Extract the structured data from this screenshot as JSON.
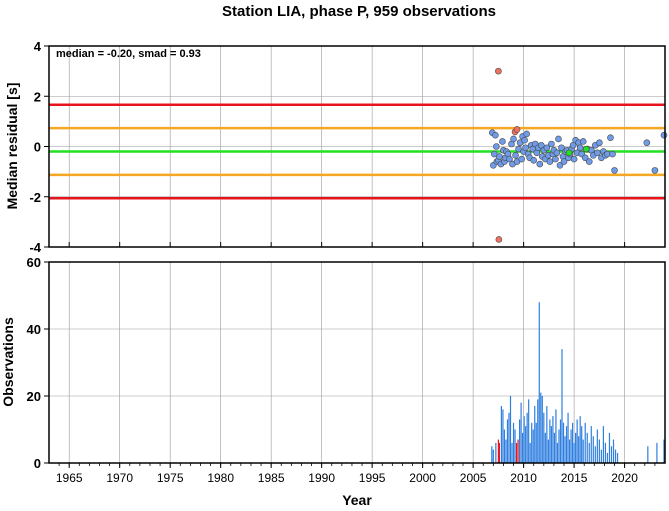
{
  "chart_data": [
    {
      "type": "scatter",
      "title": "Station LIA, phase P, 959 observations",
      "annotation": "median = -0.20, smad = 0.93",
      "ylabel": "Median residual [s]",
      "xlim": [
        1963,
        2024
      ],
      "ylim": [
        -4,
        4
      ],
      "y_ticks": [
        4,
        2,
        0,
        -2,
        -4
      ],
      "x_ticks": [
        1965,
        1970,
        1975,
        1980,
        1985,
        1990,
        1995,
        2000,
        2005,
        2010,
        2015,
        2020
      ],
      "grid": true,
      "reference_lines": [
        {
          "y": 1.66,
          "color": "#e8141c"
        },
        {
          "y": 0.73,
          "color": "#f5a623"
        },
        {
          "y": -0.2,
          "color": "#22e022"
        },
        {
          "y": -1.13,
          "color": "#f5a623"
        },
        {
          "y": -2.06,
          "color": "#e8141c"
        }
      ],
      "series": [
        {
          "color": "#6f9be8",
          "points": [
            [
              2006.9,
              0.55
            ],
            [
              2007.0,
              -0.75
            ],
            [
              2007.1,
              -0.3
            ],
            [
              2007.2,
              0.45
            ],
            [
              2007.3,
              0.0
            ],
            [
              2007.35,
              -0.6
            ],
            [
              2007.5,
              -0.55
            ],
            [
              2007.6,
              -0.4
            ],
            [
              2007.75,
              -0.7
            ],
            [
              2007.9,
              0.2
            ],
            [
              2008.0,
              -0.15
            ],
            [
              2008.1,
              -0.6
            ],
            [
              2008.2,
              -0.45
            ],
            [
              2008.3,
              -0.2
            ],
            [
              2008.45,
              -0.3
            ],
            [
              2008.6,
              -0.5
            ],
            [
              2008.8,
              0.1
            ],
            [
              2008.9,
              -0.7
            ],
            [
              2009.0,
              0.3
            ],
            [
              2009.2,
              -0.35
            ],
            [
              2009.35,
              -0.6
            ],
            [
              2009.5,
              -0.1
            ],
            [
              2009.65,
              0.15
            ],
            [
              2009.8,
              -0.5
            ],
            [
              2009.9,
              0.4
            ],
            [
              2010.0,
              -0.2
            ],
            [
              2010.1,
              0.25
            ],
            [
              2010.2,
              -0.05
            ],
            [
              2010.3,
              0.5
            ],
            [
              2010.45,
              -0.3
            ],
            [
              2010.6,
              -0.45
            ],
            [
              2010.75,
              0.05
            ],
            [
              2010.9,
              -0.1
            ],
            [
              2011.0,
              -0.55
            ],
            [
              2011.15,
              0.1
            ],
            [
              2011.3,
              -0.25
            ],
            [
              2011.45,
              -0.05
            ],
            [
              2011.6,
              -0.7
            ],
            [
              2011.75,
              0.05
            ],
            [
              2011.85,
              -0.4
            ],
            [
              2012.0,
              -0.15
            ],
            [
              2012.15,
              -0.5
            ],
            [
              2012.3,
              -0.05
            ],
            [
              2012.45,
              -0.35
            ],
            [
              2012.6,
              -0.6
            ],
            [
              2012.75,
              0.1
            ],
            [
              2012.9,
              -0.3
            ],
            [
              2013.0,
              -0.15
            ],
            [
              2013.15,
              -0.5
            ],
            [
              2013.3,
              -0.25
            ],
            [
              2013.45,
              0.3
            ],
            [
              2013.6,
              -0.75
            ],
            [
              2013.75,
              -0.05
            ],
            [
              2013.9,
              -0.4
            ],
            [
              2014.0,
              -0.6
            ],
            [
              2014.15,
              -0.2
            ],
            [
              2014.3,
              -0.15
            ],
            [
              2014.45,
              -0.45
            ],
            [
              2014.6,
              -0.3
            ],
            [
              2014.75,
              -0.1
            ],
            [
              2014.9,
              0.05
            ],
            [
              2015.0,
              -0.5
            ],
            [
              2015.15,
              0.25
            ],
            [
              2015.3,
              -0.25
            ],
            [
              2015.45,
              0.15
            ],
            [
              2015.6,
              -0.05
            ],
            [
              2015.75,
              -0.3
            ],
            [
              2015.9,
              0.2
            ],
            [
              2016.1,
              -0.45
            ],
            [
              2016.3,
              -0.1
            ],
            [
              2016.5,
              -0.6
            ],
            [
              2016.7,
              -0.15
            ],
            [
              2016.9,
              -0.35
            ],
            [
              2017.1,
              0.05
            ],
            [
              2017.3,
              -0.25
            ],
            [
              2017.5,
              0.15
            ],
            [
              2017.7,
              -0.45
            ],
            [
              2017.9,
              -0.2
            ],
            [
              2018.1,
              -0.35
            ],
            [
              2018.3,
              -0.3
            ],
            [
              2018.6,
              0.35
            ],
            [
              2018.8,
              -0.3
            ],
            [
              2019.0,
              -0.95
            ],
            [
              2022.2,
              0.15
            ],
            [
              2023.0,
              -0.95
            ],
            [
              2023.9,
              0.45
            ]
          ]
        },
        {
          "color": "#22e022",
          "points": [
            [
              2014.5,
              -0.25
            ],
            [
              2016.2,
              -0.1
            ]
          ]
        },
        {
          "color": "#f07060",
          "points": [
            [
              2007.5,
              3.0
            ],
            [
              2007.55,
              -3.7
            ],
            [
              2009.15,
              0.58
            ],
            [
              2009.35,
              0.68
            ]
          ]
        }
      ]
    },
    {
      "type": "bar",
      "xlabel": "Year",
      "ylabel": "Observations",
      "xlim": [
        1963,
        2024
      ],
      "ylim": [
        0,
        60
      ],
      "y_ticks": [
        0,
        20,
        40,
        60
      ],
      "x_ticks": [
        1965,
        1970,
        1975,
        1980,
        1985,
        1990,
        1995,
        2000,
        2005,
        2010,
        2015,
        2020
      ],
      "grid": true,
      "series": [
        {
          "color": "#2f7fe0",
          "points": [
            [
              2006.85,
              5
            ],
            [
              2007.0,
              4
            ],
            [
              2007.25,
              6
            ],
            [
              2007.8,
              17
            ],
            [
              2007.95,
              16
            ],
            [
              2008.1,
              10
            ],
            [
              2008.25,
              7
            ],
            [
              2008.4,
              13
            ],
            [
              2008.55,
              15
            ],
            [
              2008.7,
              20
            ],
            [
              2008.85,
              6
            ],
            [
              2009.0,
              12
            ],
            [
              2009.15,
              10
            ],
            [
              2009.6,
              13
            ],
            [
              2009.75,
              18
            ],
            [
              2009.9,
              9
            ],
            [
              2010.05,
              14
            ],
            [
              2010.2,
              11
            ],
            [
              2010.35,
              15
            ],
            [
              2010.5,
              19
            ],
            [
              2010.65,
              6
            ],
            [
              2010.8,
              12
            ],
            [
              2010.95,
              10
            ],
            [
              2011.1,
              17
            ],
            [
              2011.25,
              12
            ],
            [
              2011.4,
              19
            ],
            [
              2011.55,
              48
            ],
            [
              2011.7,
              21
            ],
            [
              2011.85,
              20
            ],
            [
              2012.0,
              15
            ],
            [
              2012.15,
              9
            ],
            [
              2012.3,
              17
            ],
            [
              2012.45,
              7
            ],
            [
              2012.6,
              13
            ],
            [
              2012.75,
              11
            ],
            [
              2012.9,
              14
            ],
            [
              2013.05,
              9
            ],
            [
              2013.2,
              16
            ],
            [
              2013.35,
              6
            ],
            [
              2013.5,
              10
            ],
            [
              2013.65,
              13
            ],
            [
              2013.8,
              34
            ],
            [
              2013.95,
              12
            ],
            [
              2014.1,
              8
            ],
            [
              2014.25,
              11
            ],
            [
              2014.4,
              15
            ],
            [
              2014.55,
              7
            ],
            [
              2014.7,
              10
            ],
            [
              2014.85,
              12
            ],
            [
              2015.0,
              6
            ],
            [
              2015.15,
              9
            ],
            [
              2015.3,
              13
            ],
            [
              2015.45,
              8
            ],
            [
              2015.6,
              14
            ],
            [
              2015.75,
              11
            ],
            [
              2015.9,
              7
            ],
            [
              2016.1,
              12
            ],
            [
              2016.3,
              9
            ],
            [
              2016.5,
              6
            ],
            [
              2016.7,
              11
            ],
            [
              2016.9,
              8
            ],
            [
              2017.1,
              5
            ],
            [
              2017.3,
              10
            ],
            [
              2017.5,
              7
            ],
            [
              2017.7,
              4
            ],
            [
              2017.9,
              11
            ],
            [
              2018.1,
              6
            ],
            [
              2018.3,
              3
            ],
            [
              2018.5,
              9
            ],
            [
              2018.7,
              5
            ],
            [
              2018.9,
              7
            ],
            [
              2019.1,
              4
            ],
            [
              2019.3,
              3
            ],
            [
              2022.3,
              5
            ],
            [
              2023.2,
              6
            ],
            [
              2023.9,
              7
            ]
          ]
        },
        {
          "color": "#e8141c",
          "points": [
            [
              2007.5,
              7
            ],
            [
              2007.6,
              6
            ],
            [
              2009.3,
              6
            ],
            [
              2009.45,
              7
            ]
          ]
        }
      ]
    }
  ]
}
